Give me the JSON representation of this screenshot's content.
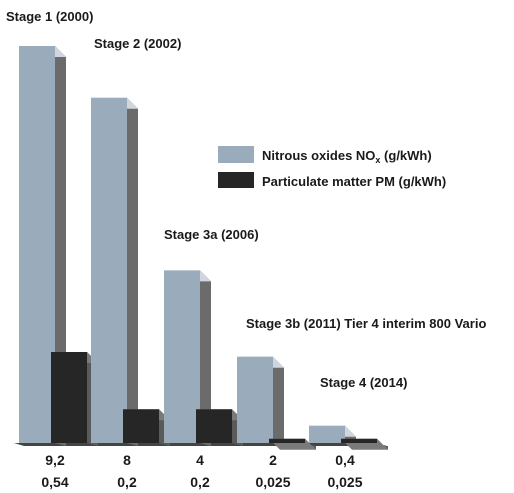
{
  "chart_data": {
    "type": "bar",
    "title": "",
    "xlabel": "",
    "ylabel": "",
    "categories": [
      "Stage 1 (2000)",
      "Stage 2 (2002)",
      "Stage 3a (2006)",
      "Stage 3b (2011) Tier 4 interim 800 Vario",
      "Stage 4 (2014)"
    ],
    "series": [
      {
        "name": "Nitrous oxides NOx (g/kWh)",
        "legend_main": "Nitrous oxides NO",
        "legend_sub": "x",
        "legend_tail": " (g/kWh)",
        "color": "#9aabbb",
        "values": [
          9.2,
          8,
          4,
          2,
          0.4
        ],
        "labels": [
          "9,2",
          "8",
          "4",
          "2",
          "0,4"
        ]
      },
      {
        "name": "Particulate matter PM (g/kWh)",
        "color": "#262626",
        "values": [
          0.54,
          0.2,
          0.2,
          0.025,
          0.025
        ],
        "labels": [
          "0,54",
          "0,2",
          "0,2",
          "0,025",
          "0,025"
        ]
      }
    ],
    "scale_note": "NOx and PM bars drawn on separate scales",
    "grid": false,
    "legend_position": "right"
  }
}
